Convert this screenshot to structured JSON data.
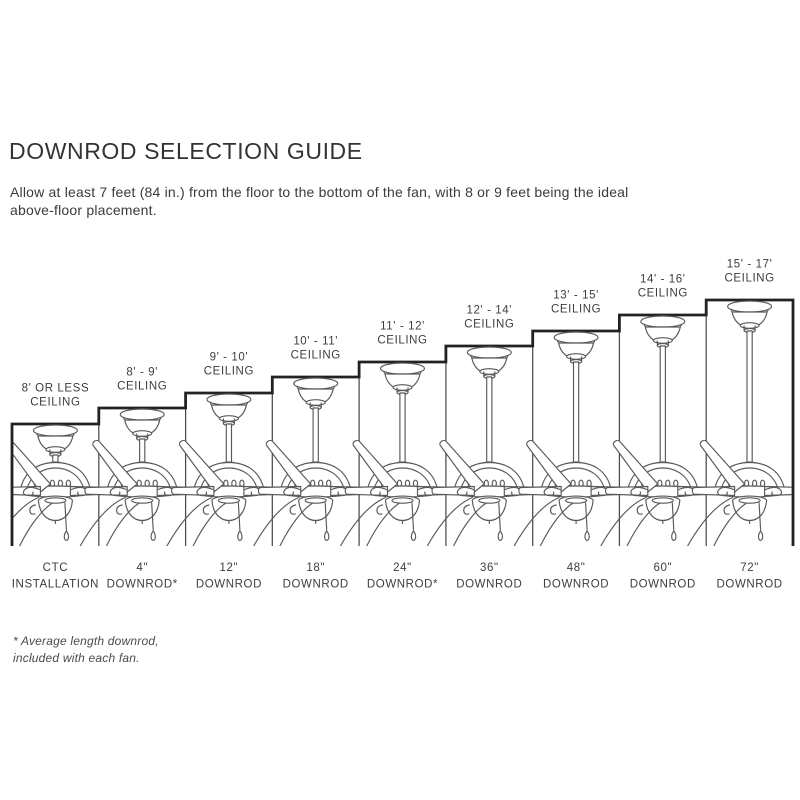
{
  "title": "DOWNROD SELECTION GUIDE",
  "intro": {
    "line1": "Allow at least 7 feet (84 in.) from the floor to the bottom of the fan, with 8 or 9 feet being the ideal",
    "line2": "above-floor placement."
  },
  "footnote": {
    "line1": "* Average length downrod,",
    "line2": "included with each fan."
  },
  "columns": [
    {
      "ceiling_lines": [
        "8' OR LESS",
        "CEILING"
      ],
      "downrod_lines": [
        "CTC",
        "INSTALLATION"
      ]
    },
    {
      "ceiling_lines": [
        "8' - 9'",
        "CEILING"
      ],
      "downrod_lines": [
        "4\"",
        "DOWNROD*"
      ]
    },
    {
      "ceiling_lines": [
        "9' - 10'",
        "CEILING"
      ],
      "downrod_lines": [
        "12\"",
        "DOWNROD"
      ]
    },
    {
      "ceiling_lines": [
        "10' - 11'",
        "CEILING"
      ],
      "downrod_lines": [
        "18\"",
        "DOWNROD"
      ]
    },
    {
      "ceiling_lines": [
        "11' - 12'",
        "CEILING"
      ],
      "downrod_lines": [
        "24\"",
        "DOWNROD*"
      ]
    },
    {
      "ceiling_lines": [
        "12' - 14'",
        "CEILING"
      ],
      "downrod_lines": [
        "36\"",
        "DOWNROD"
      ]
    },
    {
      "ceiling_lines": [
        "13' - 15'",
        "CEILING"
      ],
      "downrod_lines": [
        "48\"",
        "DOWNROD"
      ]
    },
    {
      "ceiling_lines": [
        "14' - 16'",
        "CEILING"
      ],
      "downrod_lines": [
        "60\"",
        "DOWNROD"
      ]
    },
    {
      "ceiling_lines": [
        "15' - 17'",
        "CEILING"
      ],
      "downrod_lines": [
        "72\"",
        "DOWNROD"
      ]
    }
  ],
  "colors": {
    "outline": "#222222",
    "divider": "#4b4b4b",
    "line_art": "#595959",
    "text": "#3d3d3d",
    "background": "#ffffff"
  }
}
